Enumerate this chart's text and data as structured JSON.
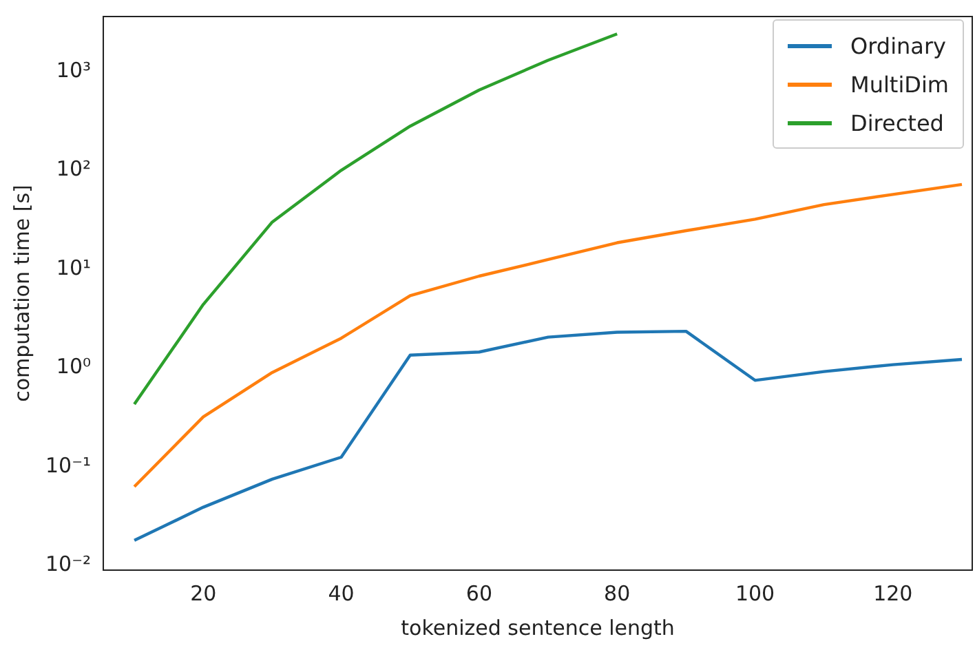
{
  "chart_data": {
    "type": "line",
    "xlabel": "tokenized sentence length",
    "ylabel": "computation time [s]",
    "log": "y",
    "grid": false,
    "legend": "top right",
    "marker": "none",
    "line_style": "solid",
    "x": [
      10,
      20,
      30,
      40,
      50,
      60,
      70,
      80,
      90,
      100,
      110,
      120,
      130
    ],
    "xlim": [
      5.5,
      131.5
    ],
    "xticks": [
      20,
      40,
      60,
      80,
      100,
      120
    ],
    "ylim": [
      0.009,
      3600
    ],
    "yticks": [
      {
        "value": 0.01,
        "label": "10⁻²"
      },
      {
        "value": 0.1,
        "label": "10⁻¹"
      },
      {
        "value": 1,
        "label": "10⁰"
      },
      {
        "value": 10,
        "label": "10¹"
      },
      {
        "value": 100,
        "label": "10²"
      },
      {
        "value": 1000,
        "label": "10³"
      }
    ],
    "series": [
      {
        "name": "Ordinary",
        "color": "#1f77b4",
        "values": [
          0.018,
          0.039,
          0.075,
          0.125,
          1.35,
          1.45,
          2.05,
          2.3,
          2.35,
          0.75,
          0.92,
          1.08,
          1.22
        ]
      },
      {
        "name": "MultiDim",
        "color": "#ff7f0e",
        "values": [
          0.063,
          0.32,
          0.9,
          2.0,
          5.4,
          8.5,
          12.5,
          18.5,
          24.5,
          32,
          45,
          57,
          72
        ]
      },
      {
        "name": "Directed",
        "color": "#2ca02c",
        "values": [
          0.43,
          4.4,
          30,
          100,
          280,
          650,
          1300,
          2400,
          null,
          null,
          null,
          null,
          null
        ]
      }
    ]
  }
}
